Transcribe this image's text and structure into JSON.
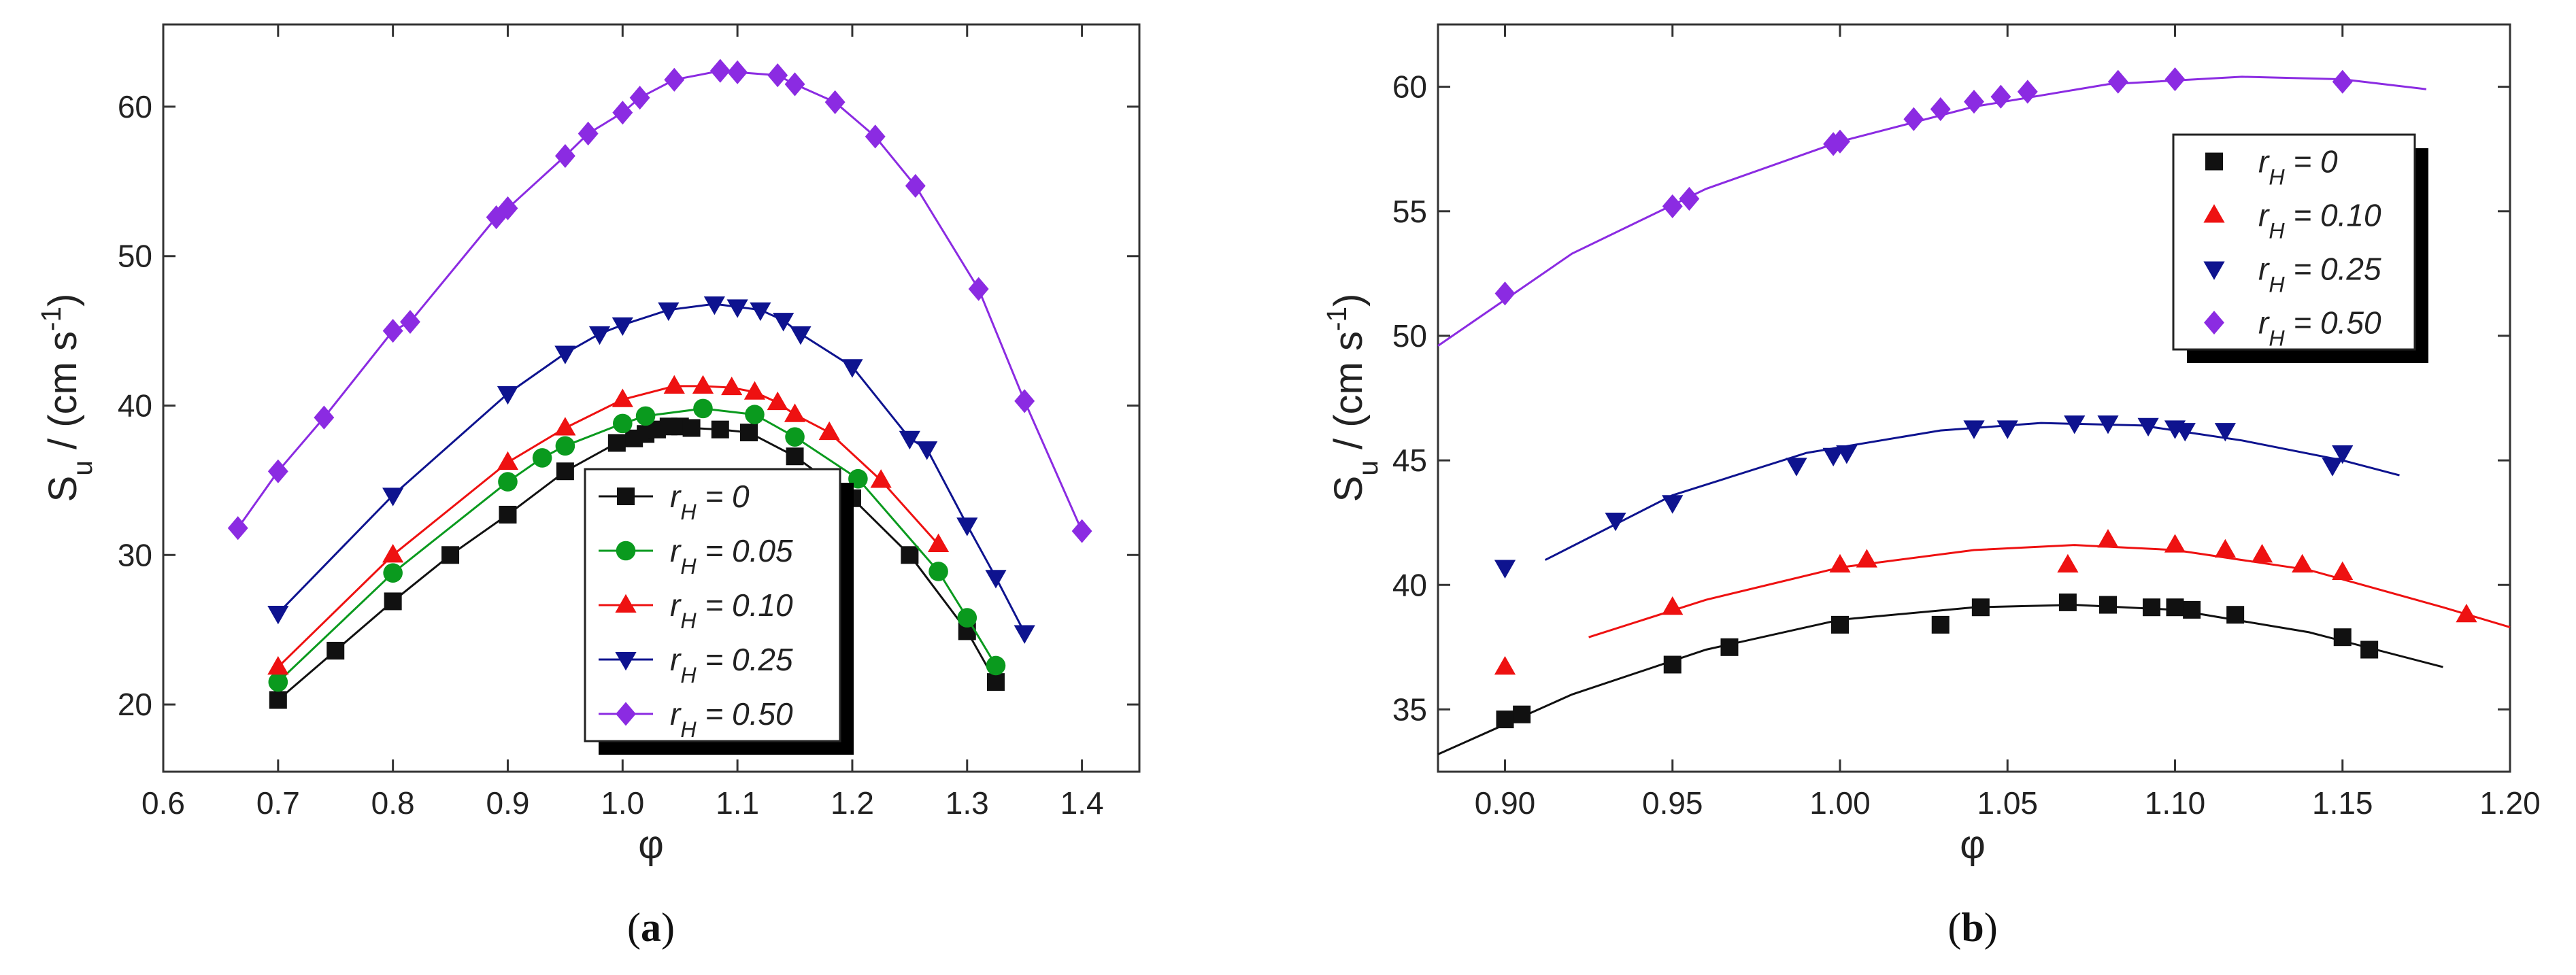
{
  "colors": {
    "black": "#111111",
    "green": "#0a9a1e",
    "red": "#ee1111",
    "blue": "#0e138f",
    "violet": "#8b2be2"
  },
  "chart_data": [
    {
      "type": "line",
      "panel_label": "(a)",
      "panel_label_parts": [
        "(",
        "a",
        ")"
      ],
      "xlabel": "φ",
      "ylabel_main": "S",
      "ylabel_sub": "u",
      "ylabel_rest": " / (cm s",
      "ylabel_sup": "-1",
      "ylabel_close": ")",
      "xlim": [
        0.6,
        1.45
      ],
      "ylim": [
        15.5,
        65.5
      ],
      "xticks": [
        "0.6",
        "0.7",
        "0.8",
        "0.9",
        "1.0",
        "1.1",
        "1.2",
        "1.3",
        "1.4"
      ],
      "yticks": [
        "20",
        "30",
        "40",
        "50",
        "60"
      ],
      "legend": "bottom-right",
      "series": [
        {
          "name": "rH = 0",
          "label_main": "r",
          "label_sub": "H",
          "label_rest": " = 0",
          "marker": "square",
          "color": "#111111",
          "points": [
            [
              0.7,
              20.3
            ],
            [
              0.75,
              23.6
            ],
            [
              0.8,
              26.9
            ],
            [
              0.85,
              30.0
            ],
            [
              0.9,
              32.7
            ],
            [
              0.95,
              35.6
            ],
            [
              0.995,
              37.5
            ],
            [
              1.01,
              37.8
            ],
            [
              1.02,
              38.1
            ],
            [
              1.03,
              38.4
            ],
            [
              1.04,
              38.6
            ],
            [
              1.05,
              38.6
            ],
            [
              1.06,
              38.5
            ],
            [
              1.085,
              38.4
            ],
            [
              1.11,
              38.2
            ],
            [
              1.15,
              36.6
            ],
            [
              1.2,
              33.8
            ],
            [
              1.25,
              30.0
            ],
            [
              1.3,
              24.9
            ],
            [
              1.325,
              21.5
            ]
          ]
        },
        {
          "name": "rH = 0.05",
          "label_main": "r",
          "label_sub": "H",
          "label_rest": " = 0.05",
          "marker": "circle",
          "color": "#0a9a1e",
          "points": [
            [
              0.7,
              21.5
            ],
            [
              0.8,
              28.8
            ],
            [
              0.9,
              34.9
            ],
            [
              0.93,
              36.5
            ],
            [
              0.95,
              37.3
            ],
            [
              1.0,
              38.8
            ],
            [
              1.02,
              39.3
            ],
            [
              1.07,
              39.8
            ],
            [
              1.115,
              39.4
            ],
            [
              1.15,
              37.9
            ],
            [
              1.205,
              35.1
            ],
            [
              1.275,
              28.9
            ],
            [
              1.3,
              25.8
            ],
            [
              1.325,
              22.6
            ]
          ]
        },
        {
          "name": "rH = 0.10",
          "label_main": "r",
          "label_sub": "H",
          "label_rest": " = 0.10",
          "marker": "triangle-up",
          "color": "#ee1111",
          "points": [
            [
              0.7,
              22.5
            ],
            [
              0.8,
              30.0
            ],
            [
              0.9,
              36.2
            ],
            [
              0.95,
              38.5
            ],
            [
              1.0,
              40.4
            ],
            [
              1.045,
              41.3
            ],
            [
              1.07,
              41.3
            ],
            [
              1.095,
              41.2
            ],
            [
              1.115,
              40.9
            ],
            [
              1.135,
              40.2
            ],
            [
              1.15,
              39.4
            ],
            [
              1.18,
              38.2
            ],
            [
              1.225,
              35.0
            ],
            [
              1.275,
              30.7
            ]
          ]
        },
        {
          "name": "rH = 0.25",
          "label_main": "r",
          "label_sub": "H",
          "label_rest": " = 0.25",
          "marker": "triangle-down",
          "color": "#0e138f",
          "points": [
            [
              0.7,
              26.1
            ],
            [
              0.8,
              34.0
            ],
            [
              0.9,
              40.8
            ],
            [
              0.95,
              43.5
            ],
            [
              0.98,
              44.8
            ],
            [
              1.0,
              45.4
            ],
            [
              1.04,
              46.4
            ],
            [
              1.08,
              46.8
            ],
            [
              1.1,
              46.6
            ],
            [
              1.12,
              46.4
            ],
            [
              1.14,
              45.7
            ],
            [
              1.155,
              44.8
            ],
            [
              1.2,
              42.6
            ],
            [
              1.25,
              37.8
            ],
            [
              1.265,
              37.1
            ],
            [
              1.3,
              32.0
            ],
            [
              1.325,
              28.5
            ],
            [
              1.35,
              24.8
            ]
          ]
        },
        {
          "name": "rH = 0.50",
          "label_main": "r",
          "label_sub": "H",
          "label_rest": " = 0.50",
          "marker": "diamond",
          "color": "#8b2be2",
          "points": [
            [
              0.665,
              31.8
            ],
            [
              0.7,
              35.6
            ],
            [
              0.74,
              39.2
            ],
            [
              0.8,
              45.0
            ],
            [
              0.815,
              45.6
            ],
            [
              0.89,
              52.6
            ],
            [
              0.9,
              53.2
            ],
            [
              0.95,
              56.7
            ],
            [
              0.97,
              58.2
            ],
            [
              1.0,
              59.6
            ],
            [
              1.015,
              60.6
            ],
            [
              1.045,
              61.8
            ],
            [
              1.085,
              62.4
            ],
            [
              1.1,
              62.3
            ],
            [
              1.135,
              62.1
            ],
            [
              1.15,
              61.5
            ],
            [
              1.185,
              60.3
            ],
            [
              1.22,
              58.0
            ],
            [
              1.255,
              54.7
            ],
            [
              1.31,
              47.8
            ],
            [
              1.35,
              40.3
            ],
            [
              1.4,
              31.6
            ]
          ]
        }
      ]
    },
    {
      "type": "line",
      "panel_label": "(b)",
      "panel_label_parts": [
        "(",
        "b",
        ")"
      ],
      "xlabel": "φ",
      "ylabel_main": "S",
      "ylabel_sub": "u",
      "ylabel_rest": " / (cm s",
      "ylabel_sup": "-1",
      "ylabel_close": ")",
      "xlim": [
        0.88,
        1.2
      ],
      "ylim": [
        32.5,
        62.5
      ],
      "xticks": [
        "0.90",
        "0.95",
        "1.00",
        "1.05",
        "1.10",
        "1.15",
        "1.20"
      ],
      "yticks": [
        "35",
        "40",
        "45",
        "50",
        "55",
        "60"
      ],
      "legend": "top-right",
      "series": [
        {
          "name": "rH = 0",
          "label_main": "r",
          "label_sub": "H",
          "label_rest": " = 0",
          "marker": "square",
          "color": "#111111",
          "points": [
            [
              0.9,
              34.6
            ],
            [
              0.905,
              34.8
            ],
            [
              0.95,
              36.8
            ],
            [
              0.967,
              37.5
            ],
            [
              1.0,
              38.4
            ],
            [
              1.03,
              38.4
            ],
            [
              1.042,
              39.1
            ],
            [
              1.068,
              39.3
            ],
            [
              1.08,
              39.2
            ],
            [
              1.093,
              39.1
            ],
            [
              1.1,
              39.1
            ],
            [
              1.105,
              39.0
            ],
            [
              1.118,
              38.8
            ],
            [
              1.15,
              37.9
            ],
            [
              1.158,
              37.4
            ]
          ],
          "fit": [
            [
              0.88,
              33.2
            ],
            [
              0.92,
              35.6
            ],
            [
              0.96,
              37.4
            ],
            [
              1.0,
              38.6
            ],
            [
              1.04,
              39.1
            ],
            [
              1.07,
              39.2
            ],
            [
              1.1,
              39.0
            ],
            [
              1.14,
              38.1
            ],
            [
              1.18,
              36.7
            ]
          ]
        },
        {
          "name": "rH = 0.10",
          "label_main": "r",
          "label_sub": "H",
          "label_rest": " = 0.10",
          "marker": "triangle-up",
          "color": "#ee1111",
          "points": [
            [
              0.9,
              36.7
            ],
            [
              0.95,
              39.1
            ],
            [
              1.0,
              40.8
            ],
            [
              1.008,
              41.0
            ],
            [
              1.068,
              40.8
            ],
            [
              1.08,
              41.8
            ],
            [
              1.1,
              41.6
            ],
            [
              1.115,
              41.4
            ],
            [
              1.126,
              41.2
            ],
            [
              1.138,
              40.8
            ],
            [
              1.15,
              40.5
            ],
            [
              1.187,
              38.8
            ]
          ],
          "fit": [
            [
              0.925,
              37.9
            ],
            [
              0.96,
              39.4
            ],
            [
              1.0,
              40.7
            ],
            [
              1.04,
              41.4
            ],
            [
              1.07,
              41.6
            ],
            [
              1.1,
              41.4
            ],
            [
              1.14,
              40.6
            ],
            [
              1.18,
              39.1
            ],
            [
              1.2,
              38.3
            ]
          ]
        },
        {
          "name": "rH = 0.25",
          "label_main": "r",
          "label_sub": "H",
          "label_rest": " = 0.25",
          "marker": "triangle-down",
          "color": "#0e138f",
          "points": [
            [
              0.9,
              40.7
            ],
            [
              0.933,
              42.6
            ],
            [
              0.95,
              43.3
            ],
            [
              0.987,
              44.8
            ],
            [
              0.998,
              45.2
            ],
            [
              1.002,
              45.3
            ],
            [
              1.04,
              46.3
            ],
            [
              1.05,
              46.3
            ],
            [
              1.07,
              46.5
            ],
            [
              1.08,
              46.5
            ],
            [
              1.092,
              46.4
            ],
            [
              1.1,
              46.3
            ],
            [
              1.103,
              46.2
            ],
            [
              1.115,
              46.2
            ],
            [
              1.147,
              44.8
            ],
            [
              1.15,
              45.3
            ]
          ],
          "fit": [
            [
              0.912,
              41.0
            ],
            [
              0.95,
              43.6
            ],
            [
              0.99,
              45.3
            ],
            [
              1.03,
              46.2
            ],
            [
              1.06,
              46.5
            ],
            [
              1.09,
              46.4
            ],
            [
              1.12,
              45.8
            ],
            [
              1.15,
              45.0
            ],
            [
              1.167,
              44.4
            ]
          ]
        },
        {
          "name": "rH = 0.50",
          "label_main": "r",
          "label_sub": "H",
          "label_rest": " = 0.50",
          "marker": "diamond",
          "color": "#8b2be2",
          "points": [
            [
              0.9,
              51.7
            ],
            [
              0.95,
              55.2
            ],
            [
              0.955,
              55.5
            ],
            [
              0.998,
              57.7
            ],
            [
              1.0,
              57.8
            ],
            [
              1.022,
              58.7
            ],
            [
              1.03,
              59.1
            ],
            [
              1.04,
              59.4
            ],
            [
              1.048,
              59.6
            ],
            [
              1.056,
              59.8
            ],
            [
              1.083,
              60.2
            ],
            [
              1.1,
              60.3
            ],
            [
              1.15,
              60.2
            ]
          ],
          "fit": [
            [
              0.88,
              49.6
            ],
            [
              0.92,
              53.3
            ],
            [
              0.96,
              55.9
            ],
            [
              1.0,
              57.8
            ],
            [
              1.04,
              59.2
            ],
            [
              1.08,
              60.1
            ],
            [
              1.12,
              60.4
            ],
            [
              1.15,
              60.3
            ],
            [
              1.175,
              59.9
            ]
          ]
        }
      ]
    }
  ]
}
